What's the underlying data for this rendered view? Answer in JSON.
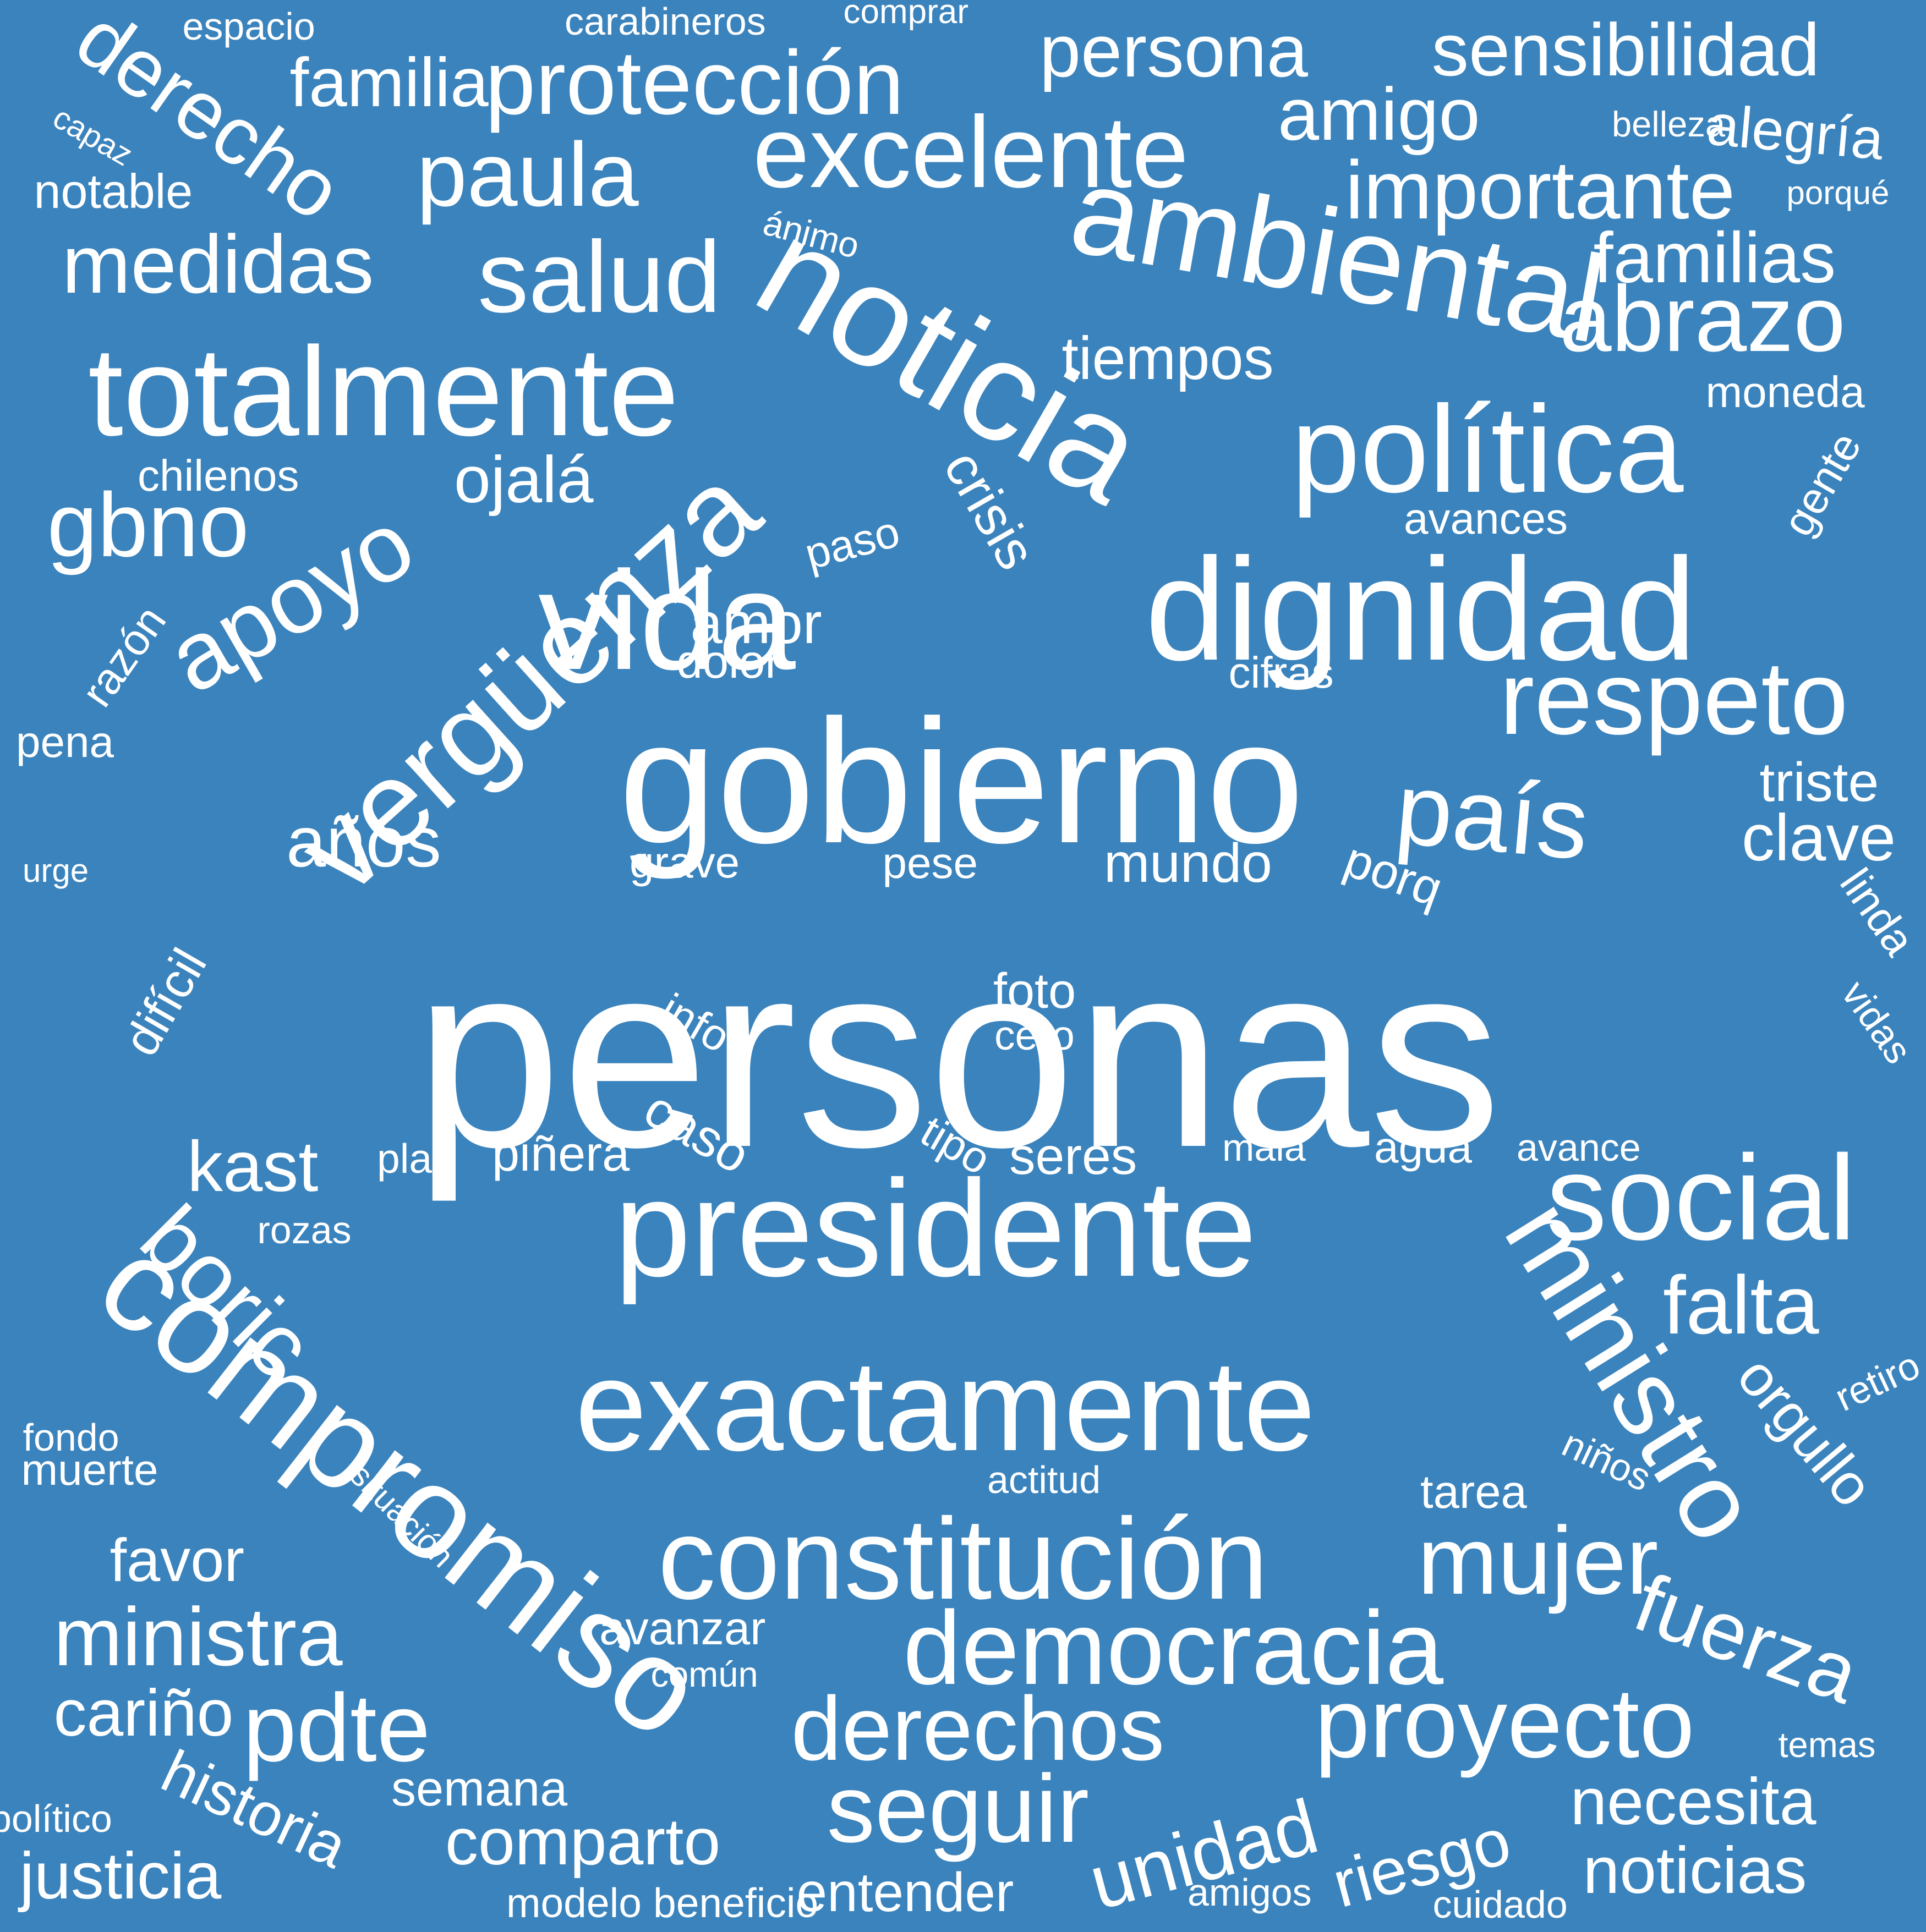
{
  "background_color": "#3a83bd",
  "text_color": "#ffffff",
  "words": [
    "espacio",
    "carabineros",
    "comprar",
    "derecho",
    "familia",
    "protección",
    "persona",
    "sensibilidad",
    "capaz",
    "amigo",
    "belleza",
    "alegría",
    "excelente",
    "paula",
    "notable",
    "importante",
    "porqué",
    "ánimo",
    "ambiental",
    "medidas",
    "salud",
    "familias",
    "noticia",
    "abrazo",
    "totalmente",
    "tiempos",
    "moneda",
    "política",
    "chilenos",
    "ojalá",
    "crisis",
    "gente",
    "gbno",
    "avances",
    "apoyo",
    "paso",
    "vergüenza",
    "vida",
    "dignidad",
    "razón",
    "amor",
    "dolor",
    "cifras",
    "respeto",
    "pena",
    "gobierno",
    "país",
    "triste",
    "años",
    "clave",
    "urge",
    "grave",
    "pese",
    "mundo",
    "porq",
    "linda",
    "personas",
    "difícil",
    "foto",
    "info",
    "cero",
    "vidas",
    "caso",
    "tipo",
    "kast",
    "plan",
    "piñera",
    "seres",
    "mala",
    "agua",
    "avance",
    "social",
    "presidente",
    "rozas",
    "boric",
    "falta",
    "compromiso",
    "exactamente",
    "ministro",
    "retiro",
    "orgullo",
    "fondo",
    "muerte",
    "situación",
    "niños",
    "actitud",
    "tarea",
    "constitución",
    "favor",
    "mujer",
    "ministra",
    "democracia",
    "avanzar",
    "fuerza",
    "común",
    "cariño",
    "pdte",
    "derechos",
    "proyecto",
    "temas",
    "historia",
    "semana",
    "seguir",
    "político",
    "necesita",
    "comparto",
    "unidad",
    "riesgo",
    "justicia",
    "noticias",
    "entender",
    "amigos",
    "modelo",
    "beneficio",
    "cuidado"
  ]
}
